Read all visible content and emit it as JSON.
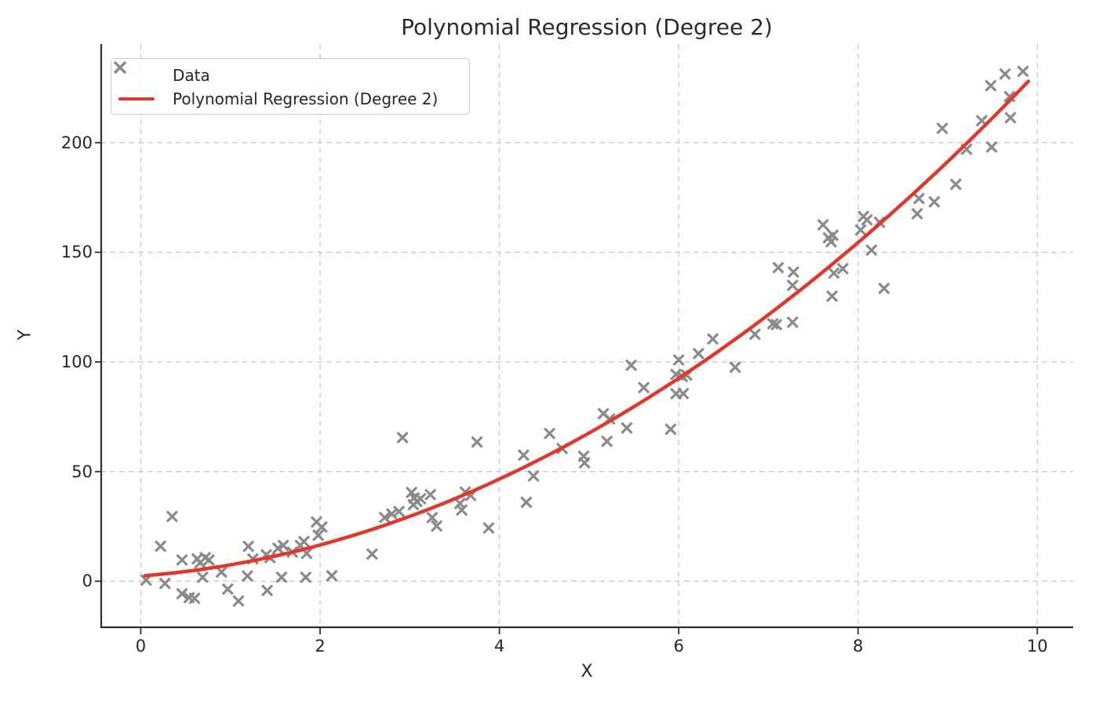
{
  "title": "Polynomial Regression (Degree 2)",
  "axes": {
    "xlabel": "X",
    "ylabel": "Y"
  },
  "legend": {
    "position": "upper left",
    "items": [
      {
        "label": "Data",
        "swatch": "x-marker",
        "color": "#8a8a8a"
      },
      {
        "label": "Polynomial Regression (Degree 2)",
        "swatch": "line",
        "color": "#e0382b"
      }
    ]
  },
  "colors": {
    "background": "#ffffff",
    "marker": "#8a8a8a",
    "regression_line": "#e0382b",
    "grid": "#cdcdcd",
    "spine": "#2e2e2e",
    "text": "#262626"
  },
  "chart_data": {
    "type": "scatter",
    "title": "Polynomial Regression (Degree 2)",
    "xlabel": "X",
    "ylabel": "Y",
    "xlim": [
      -0.45,
      10.4
    ],
    "ylim": [
      -21,
      245
    ],
    "x_ticks": [
      0,
      2,
      4,
      6,
      8,
      10
    ],
    "y_ticks": [
      0,
      50,
      100,
      150,
      200
    ],
    "grid": true,
    "grid_style": "dashed",
    "legend_position": "upper left",
    "series": [
      {
        "name": "Data",
        "type": "scatter",
        "marker": "x",
        "color": "#8a8a8a",
        "points": [
          [
            0.06,
            0.5
          ],
          [
            0.22,
            16.0
          ],
          [
            0.27,
            -1.0
          ],
          [
            0.35,
            29.5
          ],
          [
            0.46,
            9.7
          ],
          [
            0.46,
            -5.7
          ],
          [
            0.54,
            -7.5
          ],
          [
            0.6,
            -7.8
          ],
          [
            0.63,
            10.2
          ],
          [
            0.66,
            8.4
          ],
          [
            0.69,
            1.8
          ],
          [
            0.72,
            10.8
          ],
          [
            0.76,
            9.7
          ],
          [
            0.9,
            4.2
          ],
          [
            0.97,
            -3.6
          ],
          [
            1.09,
            -9.0
          ],
          [
            1.19,
            2.4
          ],
          [
            1.2,
            15.9
          ],
          [
            1.25,
            10.2
          ],
          [
            1.4,
            12.0
          ],
          [
            1.41,
            -4.2
          ],
          [
            1.44,
            10.8
          ],
          [
            1.53,
            15.1
          ],
          [
            1.57,
            1.8
          ],
          [
            1.59,
            16.3
          ],
          [
            1.69,
            13.3
          ],
          [
            1.78,
            16.3
          ],
          [
            1.82,
            18.1
          ],
          [
            1.84,
            1.8
          ],
          [
            1.85,
            12.7
          ],
          [
            1.96,
            27.0
          ],
          [
            1.98,
            21.0
          ],
          [
            2.02,
            24.7
          ],
          [
            2.13,
            2.5
          ],
          [
            2.58,
            12.4
          ],
          [
            2.72,
            29.0
          ],
          [
            2.8,
            30.7
          ],
          [
            2.88,
            31.8
          ],
          [
            2.92,
            65.5
          ],
          [
            3.02,
            40.5
          ],
          [
            3.04,
            34.9
          ],
          [
            3.05,
            38.0
          ],
          [
            3.08,
            36.4
          ],
          [
            3.12,
            37.6
          ],
          [
            3.23,
            39.5
          ],
          [
            3.25,
            29.0
          ],
          [
            3.3,
            25.2
          ],
          [
            3.56,
            35.5
          ],
          [
            3.58,
            32.5
          ],
          [
            3.62,
            40.7
          ],
          [
            3.68,
            39.1
          ],
          [
            3.75,
            63.5
          ],
          [
            3.88,
            24.3
          ],
          [
            4.27,
            57.5
          ],
          [
            4.3,
            36.0
          ],
          [
            4.38,
            48.0
          ],
          [
            4.56,
            67.4
          ],
          [
            4.7,
            60.5
          ],
          [
            4.94,
            57.0
          ],
          [
            4.95,
            54.0
          ],
          [
            5.16,
            76.4
          ],
          [
            5.2,
            63.8
          ],
          [
            5.23,
            74.0
          ],
          [
            5.42,
            69.9
          ],
          [
            5.47,
            98.5
          ],
          [
            5.61,
            88.3
          ],
          [
            5.91,
            69.3
          ],
          [
            5.97,
            94.3
          ],
          [
            5.97,
            85.5
          ],
          [
            6.0,
            100.9
          ],
          [
            6.04,
            93.4
          ],
          [
            6.05,
            85.6
          ],
          [
            6.09,
            94.0
          ],
          [
            6.22,
            103.8
          ],
          [
            6.38,
            110.5
          ],
          [
            6.63,
            97.6
          ],
          [
            6.85,
            112.6
          ],
          [
            7.05,
            117.4
          ],
          [
            7.09,
            117.0
          ],
          [
            7.11,
            143.0
          ],
          [
            7.27,
            118.1
          ],
          [
            7.27,
            134.9
          ],
          [
            7.28,
            141.0
          ],
          [
            7.61,
            162.5
          ],
          [
            7.67,
            156.6
          ],
          [
            7.7,
            154.8
          ],
          [
            7.71,
            130.0
          ],
          [
            7.72,
            157.8
          ],
          [
            7.73,
            140.5
          ],
          [
            7.83,
            142.5
          ],
          [
            8.03,
            160.2
          ],
          [
            8.06,
            166.3
          ],
          [
            8.1,
            164.8
          ],
          [
            8.15,
            151.0
          ],
          [
            8.24,
            163.7
          ],
          [
            8.29,
            133.5
          ],
          [
            8.66,
            167.6
          ],
          [
            8.68,
            174.5
          ],
          [
            8.85,
            173.0
          ],
          [
            8.94,
            206.5
          ],
          [
            9.09,
            181.0
          ],
          [
            9.21,
            197.0
          ],
          [
            9.38,
            210.0
          ],
          [
            9.48,
            226.0
          ],
          [
            9.49,
            198.0
          ],
          [
            9.64,
            231.3
          ],
          [
            9.69,
            221.0
          ],
          [
            9.7,
            211.4
          ],
          [
            9.84,
            232.5
          ]
        ]
      },
      {
        "name": "Polynomial Regression (Degree 2)",
        "type": "line",
        "color": "#e0382b",
        "model": "least-squares degree-2 polynomial fit of Data",
        "x_range": [
          0.05,
          9.9
        ]
      }
    ]
  }
}
